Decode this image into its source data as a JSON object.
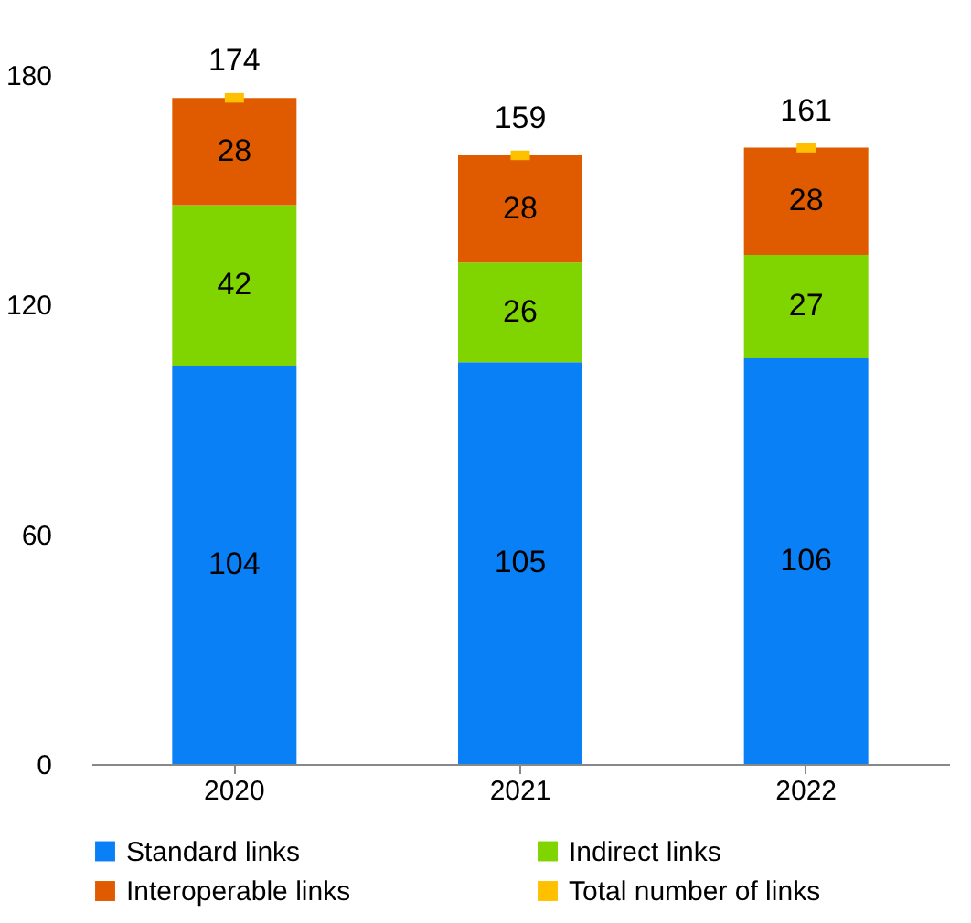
{
  "chart_data": {
    "type": "bar",
    "stacked": true,
    "categories": [
      "2020",
      "2021",
      "2022"
    ],
    "series": [
      {
        "name": "Standard links",
        "color": "#0a80f7",
        "values": [
          104,
          105,
          106
        ]
      },
      {
        "name": "Indirect links",
        "color": "#80d400",
        "values": [
          42,
          26,
          27
        ]
      },
      {
        "name": "Interoperable links",
        "color": "#e05a00",
        "values": [
          28,
          28,
          28
        ]
      },
      {
        "name": "Total number of links",
        "type": "scatter",
        "color": "#ffc000",
        "values": [
          174,
          159,
          161
        ]
      }
    ],
    "ylim": [
      0,
      180
    ],
    "yticks": [
      0,
      60,
      120,
      180
    ],
    "grid": false,
    "legend": "bottom",
    "data_labels": true
  }
}
